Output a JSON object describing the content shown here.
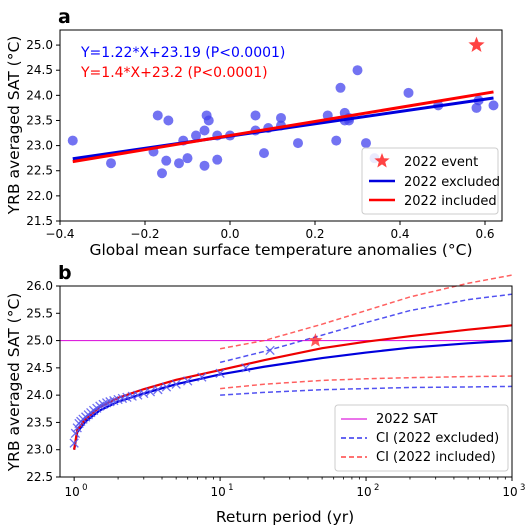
{
  "chart_data": [
    {
      "panel_label": "a",
      "type": "scatter",
      "xlabel": "Global mean surface temperature anomalies (°C)",
      "ylabel": "YRB averaged SAT (°C)",
      "xlim": [
        -0.4,
        0.64
      ],
      "ylim": [
        21.5,
        25.3
      ],
      "xticks": [
        -0.4,
        -0.2,
        0.0,
        0.2,
        0.4,
        0.6
      ],
      "xtick_labels": [
        "−0.4",
        "−0.2",
        "0.0",
        "0.2",
        "0.4",
        "0.6"
      ],
      "yticks": [
        21.5,
        22.0,
        22.5,
        23.0,
        23.5,
        24.0,
        24.5,
        25.0
      ],
      "ytick_labels": [
        "21.5",
        "22.0",
        "22.5",
        "23.0",
        "23.5",
        "24.0",
        "24.5",
        "25.0"
      ],
      "grid": false,
      "legend_position": "lower-right",
      "annotations": [
        {
          "text": "Y=1.22*X+23.19 (P<0.0001)",
          "color": "#0000ff"
        },
        {
          "text": "Y=1.4*X+23.2 (P<0.0001)",
          "color": "#ff0000"
        }
      ],
      "points_color": "#4444ee",
      "points": [
        [
          -0.37,
          23.1
        ],
        [
          -0.28,
          22.65
        ],
        [
          -0.18,
          22.88
        ],
        [
          -0.17,
          23.6
        ],
        [
          -0.16,
          22.45
        ],
        [
          -0.15,
          22.7
        ],
        [
          -0.145,
          23.5
        ],
        [
          -0.12,
          22.65
        ],
        [
          -0.11,
          23.1
        ],
        [
          -0.1,
          22.75
        ],
        [
          -0.08,
          23.2
        ],
        [
          -0.06,
          22.6
        ],
        [
          -0.06,
          23.3
        ],
        [
          -0.055,
          23.6
        ],
        [
          -0.05,
          23.5
        ],
        [
          -0.03,
          22.72
        ],
        [
          -0.03,
          23.2
        ],
        [
          0.0,
          23.2
        ],
        [
          0.06,
          23.3
        ],
        [
          0.06,
          23.6
        ],
        [
          0.08,
          22.85
        ],
        [
          0.09,
          23.35
        ],
        [
          0.12,
          23.4
        ],
        [
          0.12,
          23.55
        ],
        [
          0.16,
          23.05
        ],
        [
          0.23,
          23.6
        ],
        [
          0.25,
          23.1
        ],
        [
          0.26,
          24.15
        ],
        [
          0.27,
          23.5
        ],
        [
          0.27,
          23.65
        ],
        [
          0.28,
          23.5
        ],
        [
          0.28,
          23.55
        ],
        [
          0.3,
          24.5
        ],
        [
          0.32,
          23.05
        ],
        [
          0.34,
          22.75
        ],
        [
          0.42,
          24.05
        ],
        [
          0.49,
          23.8
        ],
        [
          0.58,
          23.75
        ],
        [
          0.585,
          23.9
        ],
        [
          0.62,
          23.8
        ]
      ],
      "event_2022": {
        "x": 0.58,
        "y": 25.0,
        "color": "#ff2222"
      },
      "series": [
        {
          "name": "2022 event",
          "kind": "marker",
          "color": "#ff2222"
        },
        {
          "name": "2022 excluded",
          "kind": "line",
          "color": "#0000dd",
          "slope": 1.22,
          "intercept": 23.19,
          "x_range": [
            -0.37,
            0.62
          ]
        },
        {
          "name": "2022 included",
          "kind": "line",
          "color": "#ff0000",
          "slope": 1.4,
          "intercept": 23.2,
          "x_range": [
            -0.37,
            0.62
          ]
        }
      ]
    },
    {
      "panel_label": "b",
      "type": "line",
      "xscale": "log",
      "xlabel": "Return period (yr)",
      "ylabel": "YRB averaged SAT (°C)",
      "xlim": [
        0.8,
        1000
      ],
      "ylim": [
        22.5,
        26.0
      ],
      "xticks": [
        1,
        10,
        100,
        1000
      ],
      "xtick_bases": [
        "10",
        "10",
        "10",
        "10"
      ],
      "xtick_exponents": [
        "0",
        "1",
        "2",
        "3"
      ],
      "yticks": [
        22.5,
        23.0,
        23.5,
        24.0,
        24.5,
        25.0,
        25.5,
        26.0
      ],
      "ytick_labels": [
        "22.5",
        "23.0",
        "23.5",
        "24.0",
        "24.5",
        "25.0",
        "25.5",
        "26.0"
      ],
      "grid": false,
      "legend_position": "lower-right",
      "sat_2022": {
        "value": 25.0,
        "color": "#dd22dd"
      },
      "empirical_points": [
        [
          1.0,
          23.12
        ],
        [
          1.02,
          23.3
        ],
        [
          1.05,
          23.4
        ],
        [
          1.08,
          23.48
        ],
        [
          1.11,
          23.52
        ],
        [
          1.15,
          23.56
        ],
        [
          1.2,
          23.6
        ],
        [
          1.25,
          23.64
        ],
        [
          1.3,
          23.68
        ],
        [
          1.36,
          23.72
        ],
        [
          1.43,
          23.76
        ],
        [
          1.5,
          23.8
        ],
        [
          1.58,
          23.83
        ],
        [
          1.67,
          23.86
        ],
        [
          1.76,
          23.88
        ],
        [
          1.87,
          23.9
        ],
        [
          2.0,
          23.92
        ],
        [
          2.14,
          23.94
        ],
        [
          2.3,
          23.96
        ],
        [
          2.5,
          23.98
        ],
        [
          2.73,
          24.0
        ],
        [
          3.0,
          24.03
        ],
        [
          3.33,
          24.06
        ],
        [
          3.75,
          24.1
        ],
        [
          4.29,
          24.15
        ],
        [
          5.0,
          24.2
        ],
        [
          6.0,
          24.26
        ],
        [
          7.5,
          24.33
        ],
        [
          10.0,
          24.4
        ],
        [
          15.0,
          24.5
        ],
        [
          22.0,
          24.82
        ]
      ],
      "event_2022": {
        "x": 45.0,
        "y": 25.0,
        "color": "#ff2222"
      },
      "series": [
        {
          "name": "2022 SAT",
          "kind": "hline",
          "color": "#dd22dd",
          "style": "solid"
        },
        {
          "name": "CI (2022 excluded)",
          "kind": "line",
          "color": "#3333ee",
          "style": "dashed",
          "upper": [
            [
              10,
              24.6
            ],
            [
              20,
              24.8
            ],
            [
              50,
              25.1
            ],
            [
              100,
              25.33
            ],
            [
              200,
              25.55
            ],
            [
              500,
              25.75
            ],
            [
              1000,
              25.85
            ]
          ],
          "lower": [
            [
              10,
              24.0
            ],
            [
              20,
              24.05
            ],
            [
              50,
              24.1
            ],
            [
              100,
              24.12
            ],
            [
              200,
              24.14
            ],
            [
              500,
              24.15
            ],
            [
              1000,
              24.16
            ]
          ]
        },
        {
          "name": "CI (2022 included)",
          "kind": "line",
          "color": "#ff4444",
          "style": "dashed",
          "upper": [
            [
              10,
              24.85
            ],
            [
              20,
              25.0
            ],
            [
              50,
              25.3
            ],
            [
              100,
              25.55
            ],
            [
              200,
              25.8
            ],
            [
              500,
              26.05
            ],
            [
              1000,
              26.2
            ]
          ],
          "lower": [
            [
              10,
              24.12
            ],
            [
              20,
              24.2
            ],
            [
              50,
              24.27
            ],
            [
              100,
              24.3
            ],
            [
              200,
              24.32
            ],
            [
              500,
              24.34
            ],
            [
              1000,
              24.35
            ]
          ]
        }
      ],
      "fit_excluded": {
        "color": "#0000dd",
        "points": [
          [
            1,
            23.0
          ],
          [
            1.05,
            23.32
          ],
          [
            1.2,
            23.52
          ],
          [
            1.5,
            23.72
          ],
          [
            2,
            23.88
          ],
          [
            3,
            24.03
          ],
          [
            5,
            24.2
          ],
          [
            10,
            24.38
          ],
          [
            20,
            24.52
          ],
          [
            50,
            24.68
          ],
          [
            100,
            24.78
          ],
          [
            200,
            24.87
          ],
          [
            500,
            24.95
          ],
          [
            1000,
            25.0
          ]
        ]
      },
      "fit_included": {
        "color": "#ee0000",
        "points": [
          [
            1,
            23.0
          ],
          [
            1.05,
            23.36
          ],
          [
            1.2,
            23.57
          ],
          [
            1.5,
            23.78
          ],
          [
            2,
            23.95
          ],
          [
            3,
            24.11
          ],
          [
            5,
            24.28
          ],
          [
            10,
            24.46
          ],
          [
            20,
            24.64
          ],
          [
            50,
            24.86
          ],
          [
            100,
            24.98
          ],
          [
            200,
            25.08
          ],
          [
            500,
            25.2
          ],
          [
            1000,
            25.28
          ]
        ]
      }
    }
  ]
}
